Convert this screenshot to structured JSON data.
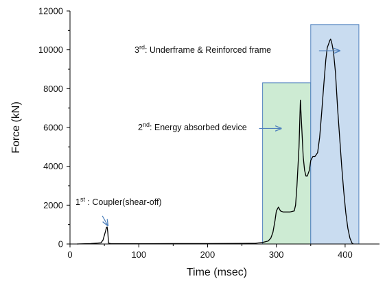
{
  "chart_data": {
    "type": "line",
    "title": "",
    "xlabel": "Time (msec)",
    "ylabel": "Force (kN)",
    "xlim": [
      0,
      450
    ],
    "ylim": [
      0,
      12000
    ],
    "x_ticks": [
      0,
      100,
      200,
      300,
      400
    ],
    "y_ticks": [
      0,
      2000,
      4000,
      6000,
      8000,
      10000,
      12000
    ],
    "x_tick_labels": [
      "0",
      "100",
      "200",
      "300",
      "400"
    ],
    "y_tick_labels": [
      "0",
      "2000",
      "4000",
      "6000",
      "8000",
      "10000",
      "12000"
    ],
    "grid": false,
    "legend": "none",
    "series": [
      {
        "color": "#000000",
        "points": [
          [
            10,
            0
          ],
          [
            30,
            20
          ],
          [
            45,
            60
          ],
          [
            48,
            200
          ],
          [
            50,
            450
          ],
          [
            52,
            700
          ],
          [
            53,
            850
          ],
          [
            54,
            880
          ],
          [
            55,
            600
          ],
          [
            56,
            50
          ],
          [
            60,
            10
          ],
          [
            100,
            15
          ],
          [
            150,
            20
          ],
          [
            200,
            20
          ],
          [
            250,
            30
          ],
          [
            270,
            40
          ],
          [
            280,
            80
          ],
          [
            288,
            150
          ],
          [
            292,
            300
          ],
          [
            295,
            600
          ],
          [
            298,
            1200
          ],
          [
            300,
            1700
          ],
          [
            303,
            1900
          ],
          [
            306,
            1700
          ],
          [
            310,
            1650
          ],
          [
            320,
            1650
          ],
          [
            326,
            1700
          ],
          [
            328,
            2000
          ],
          [
            330,
            3000
          ],
          [
            333,
            5000
          ],
          [
            335,
            7400
          ],
          [
            337,
            6000
          ],
          [
            339,
            4500
          ],
          [
            341,
            3800
          ],
          [
            343,
            3500
          ],
          [
            345,
            3500
          ],
          [
            348,
            3800
          ],
          [
            350,
            4300
          ],
          [
            353,
            4500
          ],
          [
            356,
            4500
          ],
          [
            360,
            4700
          ],
          [
            363,
            5500
          ],
          [
            366,
            6800
          ],
          [
            369,
            8200
          ],
          [
            372,
            9500
          ],
          [
            374,
            10100
          ],
          [
            376,
            10300
          ],
          [
            378,
            10500
          ],
          [
            379,
            10550
          ],
          [
            381,
            10300
          ],
          [
            383,
            9900
          ],
          [
            386,
            8800
          ],
          [
            389,
            7000
          ],
          [
            392,
            5500
          ],
          [
            395,
            4000
          ],
          [
            398,
            2700
          ],
          [
            401,
            1600
          ],
          [
            404,
            800
          ],
          [
            407,
            300
          ],
          [
            410,
            50
          ],
          [
            412,
            0
          ]
        ]
      }
    ],
    "regions": [
      {
        "x0": 280,
        "x1": 350,
        "y0": 0,
        "y1": 8300,
        "fill": "#cdebd3",
        "stroke": "#4f81bd"
      },
      {
        "x0": 350,
        "x1": 420,
        "y0": 0,
        "y1": 11300,
        "fill": "#c9dcf0",
        "stroke": "#4f81bd"
      }
    ],
    "annotations": [
      {
        "id": "annot-1",
        "sup_base": "1",
        "sup": "st",
        "rest": " : Coupler(shear-off)",
        "arrow_from": [
          47,
          1450
        ],
        "arrow_to": [
          55,
          950
        ]
      },
      {
        "id": "annot-2",
        "sup_base": "2",
        "sup": "nd",
        "rest": ": Energy absorbed device",
        "arrow_from": [
          275,
          5950
        ],
        "arrow_to": [
          307,
          5950
        ]
      },
      {
        "id": "annot-3",
        "sup_base": "3",
        "sup": "rd",
        "rest": ": Underframe & Reinforced frame",
        "arrow_from": [
          362,
          9950
        ],
        "arrow_to": [
          392,
          9950
        ]
      }
    ],
    "colors": {
      "line": "#000000",
      "arrow": "#4f81bd",
      "axis": "#000000"
    }
  }
}
